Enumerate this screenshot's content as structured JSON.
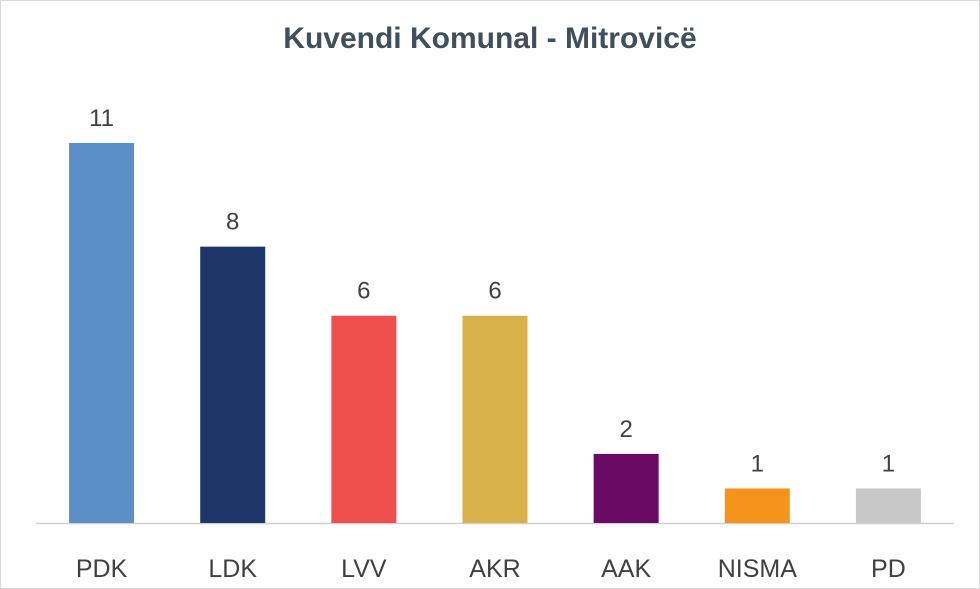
{
  "chart_data": {
    "type": "bar",
    "title": "Kuvendi Komunal - Mitrovicë",
    "xlabel": "",
    "ylabel": "",
    "categories": [
      "PDK",
      "LDK",
      "LVV",
      "AKR",
      "AAK",
      "NISMA",
      "PD"
    ],
    "values": [
      11,
      8,
      6,
      6,
      2,
      1,
      1
    ],
    "colors": [
      "#5b8fc7",
      "#1f3768",
      "#f04f4f",
      "#d9b14a",
      "#6b0a64",
      "#f5941d",
      "#c8c8c8"
    ],
    "ylim": [
      0,
      11
    ],
    "grid": false,
    "legend": "none",
    "data_labels": true
  }
}
